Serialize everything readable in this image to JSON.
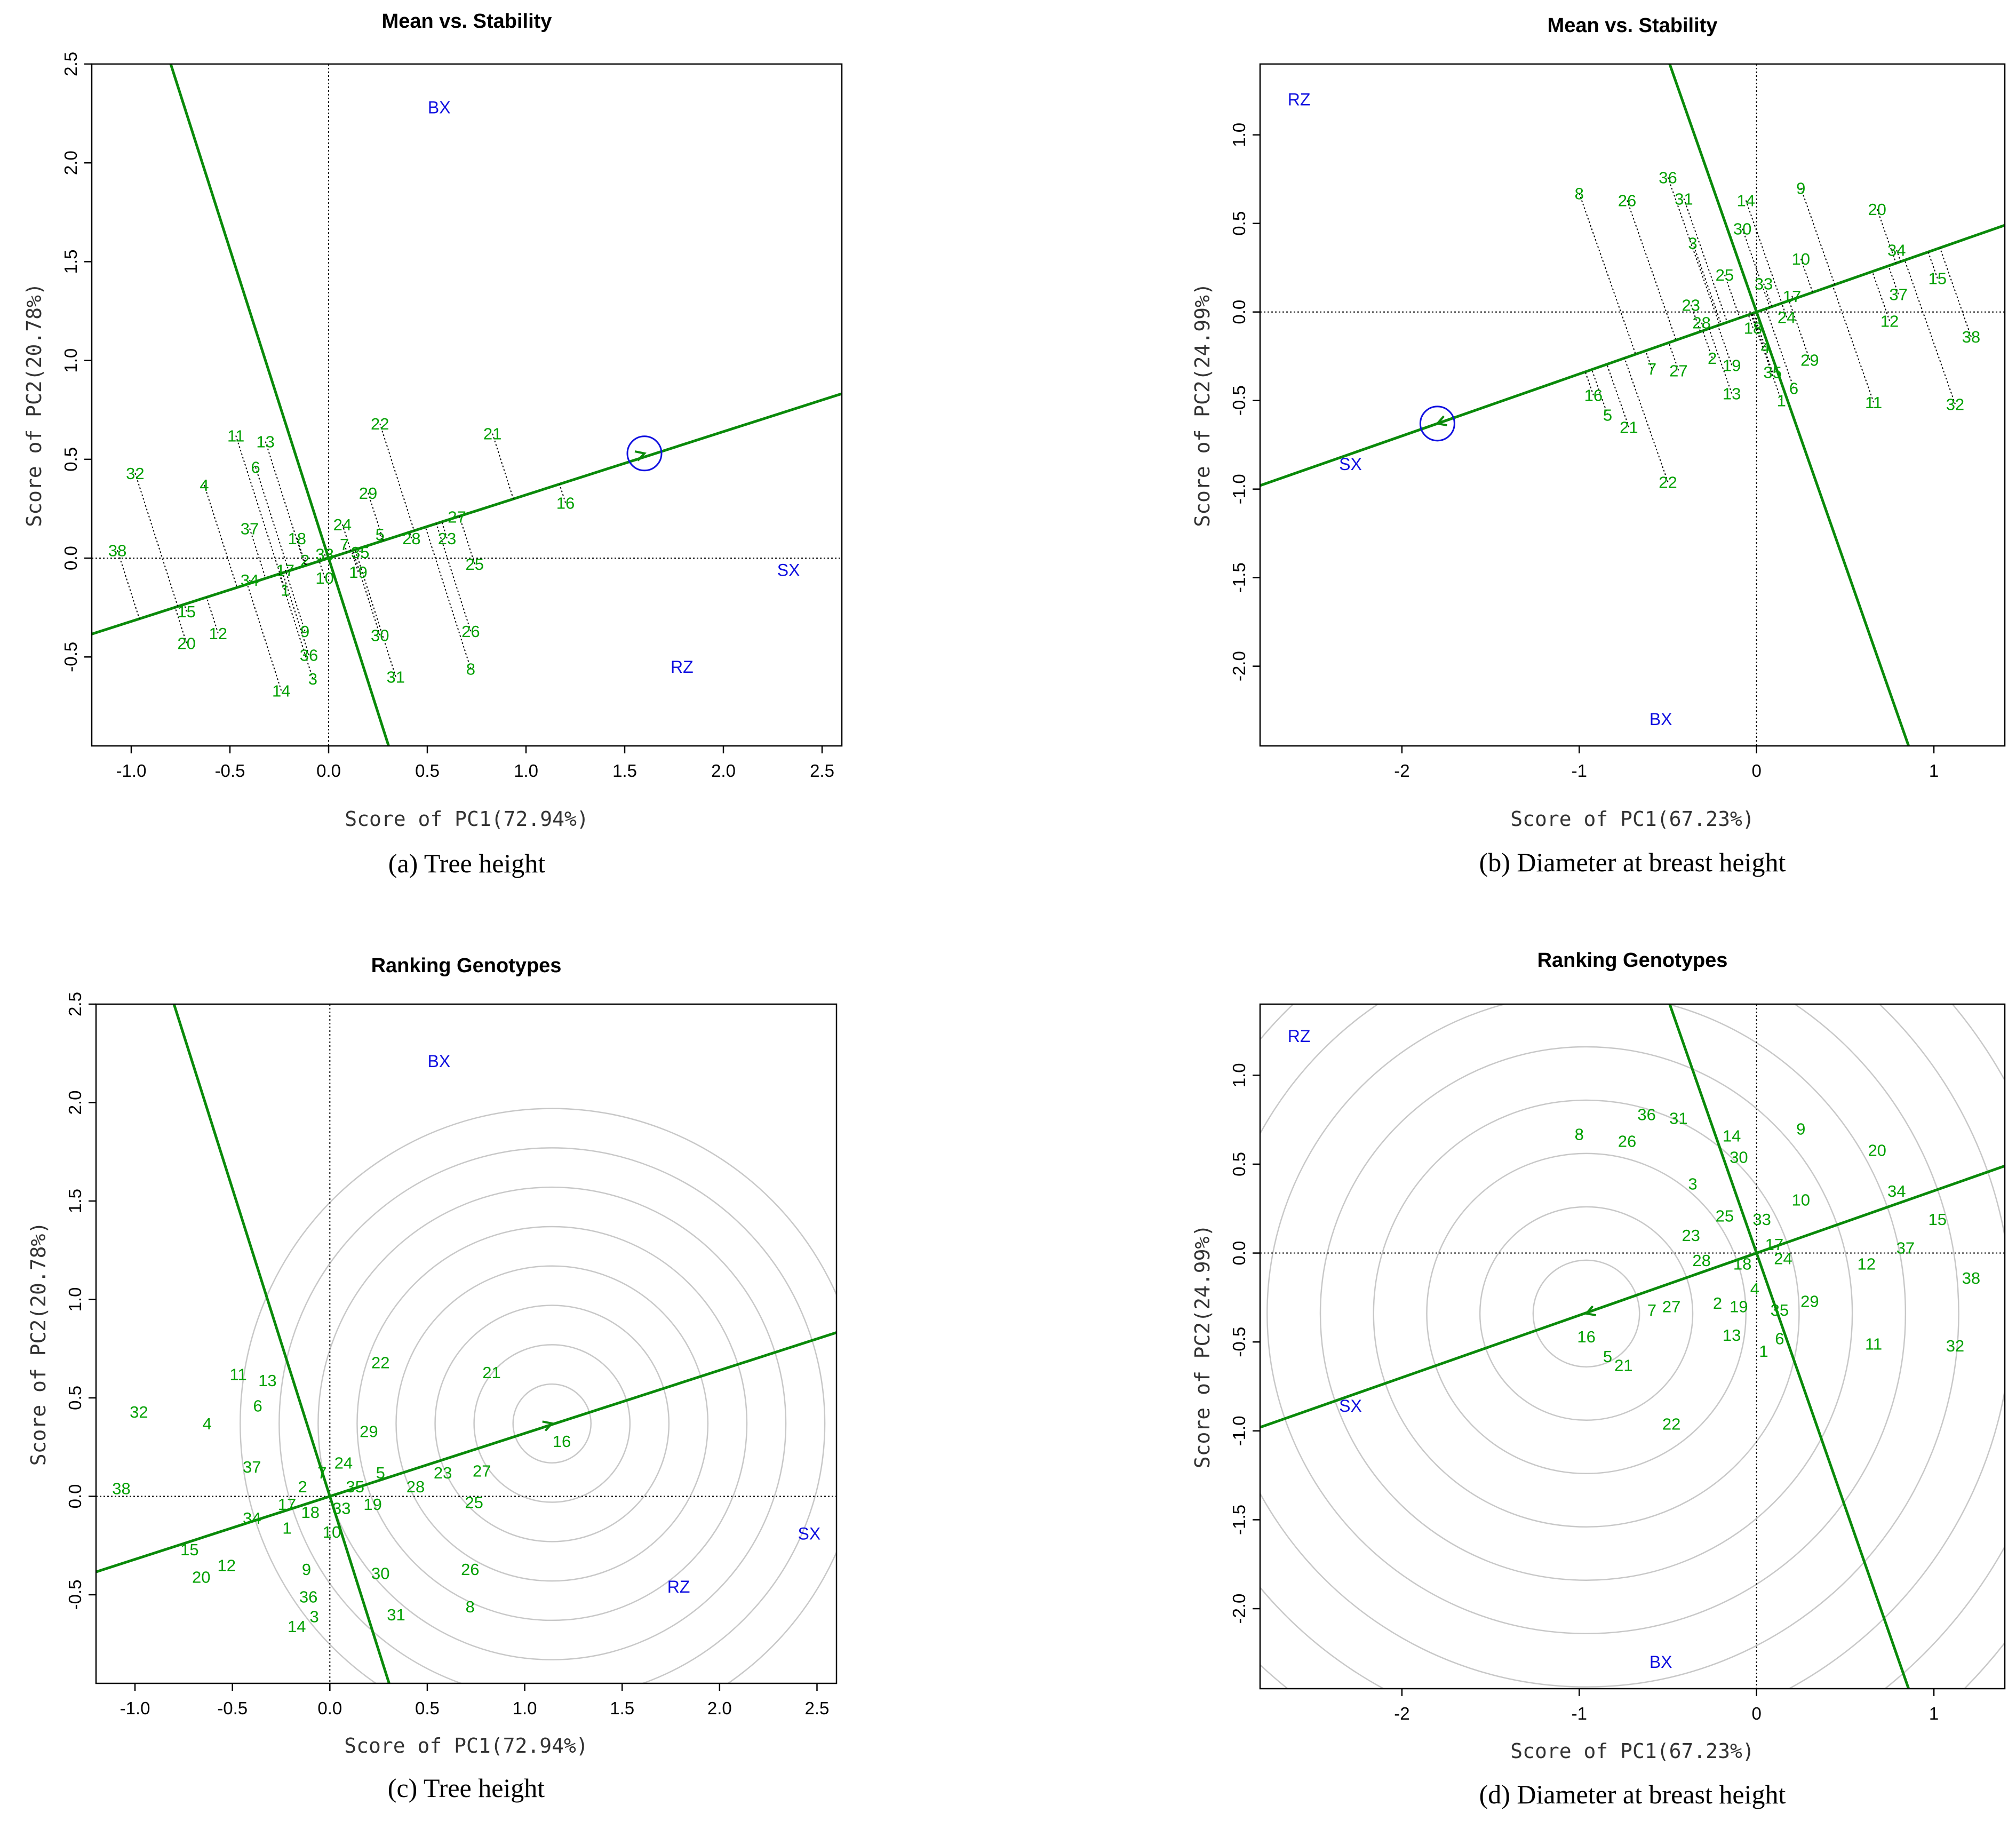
{
  "chart_data": [
    {
      "id": "a",
      "type": "scatter",
      "title": "Mean vs. Stability",
      "xlabel": "Score of PC1(72.94%)",
      "ylabel": "Score of PC2(20.78%)",
      "caption": "(a) Tree height",
      "xlim": [
        -1.2,
        2.6
      ],
      "ylim": [
        -0.95,
        2.5
      ],
      "xticks": [
        "-1.0",
        "-0.5",
        "0.0",
        "0.5",
        "1.0",
        "1.5",
        "2.0",
        "2.5"
      ],
      "yticks": [
        "-0.5",
        "0.0",
        "0.5",
        "1.0",
        "1.5",
        "2.0",
        "2.5"
      ],
      "mode": "stability",
      "aec_slope": 0.32,
      "aec_marker": {
        "x": 1.6,
        "y": 0.53,
        "symbol": ">"
      },
      "environments": [
        {
          "label": "BX",
          "x": 0.56,
          "y": 2.28
        },
        {
          "label": "SX",
          "x": 2.33,
          "y": -0.06
        },
        {
          "label": "RZ",
          "x": 1.79,
          "y": -0.55
        }
      ],
      "genotypes": [
        {
          "label": "1",
          "x": -0.22,
          "y": -0.16
        },
        {
          "label": "2",
          "x": -0.12,
          "y": -0.01
        },
        {
          "label": "3",
          "x": -0.08,
          "y": -0.61
        },
        {
          "label": "4",
          "x": -0.63,
          "y": 0.37
        },
        {
          "label": "5",
          "x": 0.26,
          "y": 0.12
        },
        {
          "label": "6",
          "x": -0.37,
          "y": 0.46
        },
        {
          "label": "7",
          "x": 0.08,
          "y": 0.07
        },
        {
          "label": "8",
          "x": 0.72,
          "y": -0.56
        },
        {
          "label": "9",
          "x": -0.12,
          "y": -0.37
        },
        {
          "label": "10",
          "x": -0.02,
          "y": -0.1
        },
        {
          "label": "11",
          "x": -0.47,
          "y": 0.62
        },
        {
          "label": "12",
          "x": -0.56,
          "y": -0.38
        },
        {
          "label": "13",
          "x": -0.32,
          "y": 0.59
        },
        {
          "label": "14",
          "x": -0.24,
          "y": -0.67
        },
        {
          "label": "15",
          "x": -0.72,
          "y": -0.27
        },
        {
          "label": "16",
          "x": 1.2,
          "y": 0.28
        },
        {
          "label": "17",
          "x": -0.22,
          "y": -0.06
        },
        {
          "label": "18",
          "x": -0.16,
          "y": 0.1
        },
        {
          "label": "19",
          "x": 0.15,
          "y": -0.07
        },
        {
          "label": "20",
          "x": -0.72,
          "y": -0.43
        },
        {
          "label": "21",
          "x": 0.83,
          "y": 0.63
        },
        {
          "label": "22",
          "x": 0.26,
          "y": 0.68
        },
        {
          "label": "23",
          "x": 0.6,
          "y": 0.1
        },
        {
          "label": "24",
          "x": 0.07,
          "y": 0.17
        },
        {
          "label": "25",
          "x": 0.74,
          "y": -0.03
        },
        {
          "label": "26",
          "x": 0.72,
          "y": -0.37
        },
        {
          "label": "27",
          "x": 0.65,
          "y": 0.21
        },
        {
          "label": "28",
          "x": 0.42,
          "y": 0.1
        },
        {
          "label": "29",
          "x": 0.2,
          "y": 0.33
        },
        {
          "label": "30",
          "x": 0.26,
          "y": -0.39
        },
        {
          "label": "31",
          "x": 0.34,
          "y": -0.6
        },
        {
          "label": "32",
          "x": -0.98,
          "y": 0.43
        },
        {
          "label": "33",
          "x": -0.02,
          "y": 0.02
        },
        {
          "label": "34",
          "x": -0.4,
          "y": -0.11
        },
        {
          "label": "35",
          "x": 0.16,
          "y": 0.03
        },
        {
          "label": "36",
          "x": -0.1,
          "y": -0.49
        },
        {
          "label": "37",
          "x": -0.4,
          "y": 0.15
        },
        {
          "label": "38",
          "x": -1.07,
          "y": 0.04
        }
      ]
    },
    {
      "id": "b",
      "type": "scatter",
      "title": "Mean vs. Stability",
      "xlabel": "Score of PC1(67.23%)",
      "ylabel": "Score of PC2(24.99%)",
      "caption": "(b) Diameter at breast height",
      "xlim": [
        -2.8,
        1.4
      ],
      "ylim": [
        -2.45,
        1.4
      ],
      "xticks": [
        "-2",
        "-1",
        "0",
        "1"
      ],
      "yticks": [
        "-2.0",
        "-1.5",
        "-1.0",
        "-0.5",
        "0.0",
        "0.5",
        "1.0"
      ],
      "mode": "stability",
      "aec_slope": 0.35,
      "aec_marker": {
        "x": -1.8,
        "y": -0.63,
        "symbol": "<"
      },
      "environments": [
        {
          "label": "RZ",
          "x": -2.58,
          "y": 1.2
        },
        {
          "label": "SX",
          "x": -2.29,
          "y": -0.86
        },
        {
          "label": "BX",
          "x": -0.54,
          "y": -2.3
        }
      ],
      "genotypes": [
        {
          "label": "1",
          "x": 0.14,
          "y": -0.5
        },
        {
          "label": "2",
          "x": -0.25,
          "y": -0.26
        },
        {
          "label": "3",
          "x": -0.36,
          "y": 0.39
        },
        {
          "label": "4",
          "x": 0.05,
          "y": -0.2
        },
        {
          "label": "5",
          "x": -0.84,
          "y": -0.58
        },
        {
          "label": "6",
          "x": 0.21,
          "y": -0.43
        },
        {
          "label": "7",
          "x": -0.59,
          "y": -0.32
        },
        {
          "label": "8",
          "x": -1.0,
          "y": 0.67
        },
        {
          "label": "9",
          "x": 0.25,
          "y": 0.7
        },
        {
          "label": "10",
          "x": 0.25,
          "y": 0.3
        },
        {
          "label": "11",
          "x": 0.66,
          "y": -0.51
        },
        {
          "label": "12",
          "x": 0.75,
          "y": -0.05
        },
        {
          "label": "13",
          "x": -0.14,
          "y": -0.46
        },
        {
          "label": "14",
          "x": -0.06,
          "y": 0.63
        },
        {
          "label": "15",
          "x": 1.02,
          "y": 0.19
        },
        {
          "label": "16",
          "x": -0.92,
          "y": -0.47
        },
        {
          "label": "17",
          "x": 0.2,
          "y": 0.09
        },
        {
          "label": "18",
          "x": -0.02,
          "y": -0.09
        },
        {
          "label": "19",
          "x": -0.14,
          "y": -0.3
        },
        {
          "label": "20",
          "x": 0.68,
          "y": 0.58
        },
        {
          "label": "21",
          "x": -0.72,
          "y": -0.65
        },
        {
          "label": "22",
          "x": -0.5,
          "y": -0.96
        },
        {
          "label": "23",
          "x": -0.37,
          "y": 0.04
        },
        {
          "label": "24",
          "x": 0.17,
          "y": -0.03
        },
        {
          "label": "25",
          "x": -0.18,
          "y": 0.21
        },
        {
          "label": "26",
          "x": -0.73,
          "y": 0.63
        },
        {
          "label": "27",
          "x": -0.44,
          "y": -0.33
        },
        {
          "label": "28",
          "x": -0.31,
          "y": -0.06
        },
        {
          "label": "29",
          "x": 0.3,
          "y": -0.27
        },
        {
          "label": "30",
          "x": -0.08,
          "y": 0.47
        },
        {
          "label": "31",
          "x": -0.41,
          "y": 0.64
        },
        {
          "label": "32",
          "x": 1.12,
          "y": -0.52
        },
        {
          "label": "33",
          "x": 0.04,
          "y": 0.16
        },
        {
          "label": "34",
          "x": 0.79,
          "y": 0.35
        },
        {
          "label": "35",
          "x": 0.09,
          "y": -0.34
        },
        {
          "label": "36",
          "x": -0.5,
          "y": 0.76
        },
        {
          "label": "37",
          "x": 0.8,
          "y": 0.1
        },
        {
          "label": "38",
          "x": 1.21,
          "y": -0.14
        }
      ]
    },
    {
      "id": "c",
      "type": "scatter",
      "title": "Ranking Genotypes",
      "xlabel": "Score of PC1(72.94%)",
      "ylabel": "Score of PC2(20.78%)",
      "caption": "(c) Tree height",
      "xlim": [
        -1.2,
        2.6
      ],
      "ylim": [
        -0.95,
        2.5
      ],
      "xticks": [
        "-1.0",
        "-0.5",
        "0.0",
        "0.5",
        "1.0",
        "1.5",
        "2.0",
        "2.5"
      ],
      "yticks": [
        "-0.5",
        "0.0",
        "0.5",
        "1.0",
        "1.5",
        "2.0",
        "2.5"
      ],
      "mode": "ranking",
      "aec_slope": 0.32,
      "aec_marker": {
        "x": 1.14,
        "y": 0.37,
        "symbol": ">"
      },
      "circle_radius_step": 0.2,
      "circle_count": 8,
      "environments": [
        {
          "label": "BX",
          "x": 0.56,
          "y": 2.21
        },
        {
          "label": "SX",
          "x": 2.46,
          "y": -0.19
        },
        {
          "label": "RZ",
          "x": 1.79,
          "y": -0.46
        }
      ],
      "genotypes": [
        {
          "label": "1",
          "x": -0.22,
          "y": -0.16
        },
        {
          "label": "2",
          "x": -0.14,
          "y": 0.05
        },
        {
          "label": "3",
          "x": -0.08,
          "y": -0.61
        },
        {
          "label": "4",
          "x": -0.63,
          "y": 0.37
        },
        {
          "label": "5",
          "x": 0.26,
          "y": 0.12
        },
        {
          "label": "6",
          "x": -0.37,
          "y": 0.46
        },
        {
          "label": "7",
          "x": -0.04,
          "y": 0.12
        },
        {
          "label": "8",
          "x": 0.72,
          "y": -0.56
        },
        {
          "label": "9",
          "x": -0.12,
          "y": -0.37
        },
        {
          "label": "10",
          "x": 0.01,
          "y": -0.18
        },
        {
          "label": "11",
          "x": -0.47,
          "y": 0.62
        },
        {
          "label": "12",
          "x": -0.53,
          "y": -0.35
        },
        {
          "label": "13",
          "x": -0.32,
          "y": 0.59
        },
        {
          "label": "14",
          "x": -0.17,
          "y": -0.66
        },
        {
          "label": "15",
          "x": -0.72,
          "y": -0.27
        },
        {
          "label": "16",
          "x": 1.19,
          "y": 0.28
        },
        {
          "label": "17",
          "x": -0.22,
          "y": -0.04
        },
        {
          "label": "18",
          "x": -0.1,
          "y": -0.08
        },
        {
          "label": "19",
          "x": 0.22,
          "y": -0.04
        },
        {
          "label": "20",
          "x": -0.66,
          "y": -0.41
        },
        {
          "label": "21",
          "x": 0.83,
          "y": 0.63
        },
        {
          "label": "22",
          "x": 0.26,
          "y": 0.68
        },
        {
          "label": "23",
          "x": 0.58,
          "y": 0.12
        },
        {
          "label": "24",
          "x": 0.07,
          "y": 0.17
        },
        {
          "label": "25",
          "x": 0.74,
          "y": -0.03
        },
        {
          "label": "26",
          "x": 0.72,
          "y": -0.37
        },
        {
          "label": "27",
          "x": 0.78,
          "y": 0.13
        },
        {
          "label": "28",
          "x": 0.44,
          "y": 0.05
        },
        {
          "label": "29",
          "x": 0.2,
          "y": 0.33
        },
        {
          "label": "30",
          "x": 0.26,
          "y": -0.39
        },
        {
          "label": "31",
          "x": 0.34,
          "y": -0.6
        },
        {
          "label": "32",
          "x": -0.98,
          "y": 0.43
        },
        {
          "label": "33",
          "x": 0.06,
          "y": -0.06
        },
        {
          "label": "34",
          "x": -0.4,
          "y": -0.11
        },
        {
          "label": "35",
          "x": 0.13,
          "y": 0.05
        },
        {
          "label": "36",
          "x": -0.11,
          "y": -0.51
        },
        {
          "label": "37",
          "x": -0.4,
          "y": 0.15
        },
        {
          "label": "38",
          "x": -1.07,
          "y": 0.04
        }
      ]
    },
    {
      "id": "d",
      "type": "scatter",
      "title": "Ranking Genotypes",
      "xlabel": "Score of PC1(67.23%)",
      "ylabel": "Score of PC2(24.99%)",
      "caption": "(d) Diameter at breast height",
      "xlim": [
        -2.8,
        1.4
      ],
      "ylim": [
        -2.45,
        1.4
      ],
      "xticks": [
        "-2",
        "-1",
        "0",
        "1"
      ],
      "yticks": [
        "-2.0",
        "-1.5",
        "-1.0",
        "-0.5",
        "0.0",
        "0.5",
        "1.0"
      ],
      "mode": "ranking",
      "aec_slope": 0.35,
      "aec_marker": {
        "x": -0.96,
        "y": -0.34,
        "symbol": "<"
      },
      "circle_radius_step": 0.3,
      "circle_count": 10,
      "environments": [
        {
          "label": "RZ",
          "x": -2.58,
          "y": 1.22
        },
        {
          "label": "SX",
          "x": -2.29,
          "y": -0.86
        },
        {
          "label": "BX",
          "x": -0.54,
          "y": -2.3
        }
      ],
      "genotypes": [
        {
          "label": "1",
          "x": 0.04,
          "y": -0.55
        },
        {
          "label": "2",
          "x": -0.22,
          "y": -0.28
        },
        {
          "label": "3",
          "x": -0.36,
          "y": 0.39
        },
        {
          "label": "4",
          "x": -0.01,
          "y": -0.2
        },
        {
          "label": "5",
          "x": -0.84,
          "y": -0.58
        },
        {
          "label": "6",
          "x": 0.13,
          "y": -0.48
        },
        {
          "label": "7",
          "x": -0.59,
          "y": -0.32
        },
        {
          "label": "8",
          "x": -1.0,
          "y": 0.67
        },
        {
          "label": "9",
          "x": 0.25,
          "y": 0.7
        },
        {
          "label": "10",
          "x": 0.25,
          "y": 0.3
        },
        {
          "label": "11",
          "x": 0.66,
          "y": -0.51
        },
        {
          "label": "12",
          "x": 0.62,
          "y": -0.06
        },
        {
          "label": "13",
          "x": -0.14,
          "y": -0.46
        },
        {
          "label": "14",
          "x": -0.14,
          "y": 0.66
        },
        {
          "label": "15",
          "x": 1.02,
          "y": 0.19
        },
        {
          "label": "16",
          "x": -0.96,
          "y": -0.47
        },
        {
          "label": "17",
          "x": 0.1,
          "y": 0.05
        },
        {
          "label": "18",
          "x": -0.08,
          "y": -0.06
        },
        {
          "label": "19",
          "x": -0.1,
          "y": -0.3
        },
        {
          "label": "20",
          "x": 0.68,
          "y": 0.58
        },
        {
          "label": "21",
          "x": -0.75,
          "y": -0.63
        },
        {
          "label": "22",
          "x": -0.48,
          "y": -0.96
        },
        {
          "label": "23",
          "x": -0.37,
          "y": 0.1
        },
        {
          "label": "24",
          "x": 0.15,
          "y": -0.03
        },
        {
          "label": "25",
          "x": -0.18,
          "y": 0.21
        },
        {
          "label": "26",
          "x": -0.73,
          "y": 0.63
        },
        {
          "label": "27",
          "x": -0.48,
          "y": -0.3
        },
        {
          "label": "28",
          "x": -0.31,
          "y": -0.04
        },
        {
          "label": "29",
          "x": 0.3,
          "y": -0.27
        },
        {
          "label": "30",
          "x": -0.1,
          "y": 0.54
        },
        {
          "label": "31",
          "x": -0.44,
          "y": 0.76
        },
        {
          "label": "32",
          "x": 1.12,
          "y": -0.52
        },
        {
          "label": "33",
          "x": 0.03,
          "y": 0.19
        },
        {
          "label": "34",
          "x": 0.79,
          "y": 0.35
        },
        {
          "label": "35",
          "x": 0.13,
          "y": -0.32
        },
        {
          "label": "36",
          "x": -0.62,
          "y": 0.78
        },
        {
          "label": "37",
          "x": 0.84,
          "y": 0.03
        },
        {
          "label": "38",
          "x": 1.21,
          "y": -0.14
        }
      ]
    }
  ]
}
